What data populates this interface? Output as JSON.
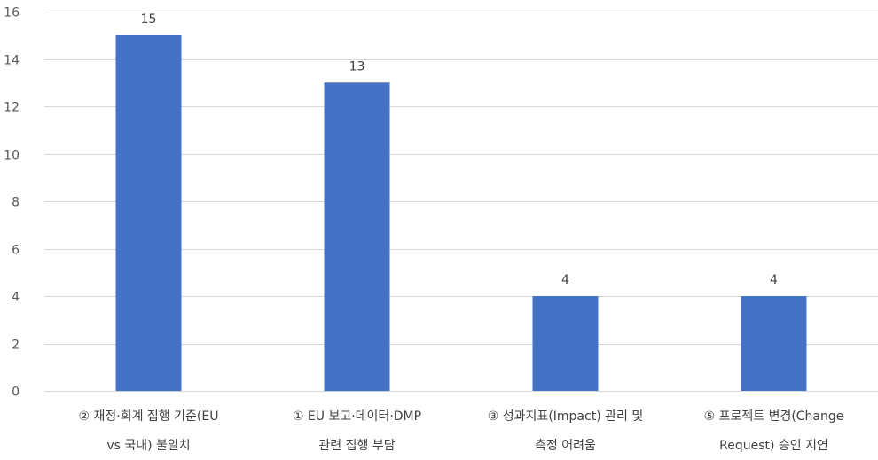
{
  "chart_data": {
    "type": "bar",
    "categories": [
      "② 재정·회계 집행 기준(EU vs 국내) 불일치",
      "① EU 보고·데이터·DMP 관련 집행 부담",
      "③ 성과지표(Impact) 관리 및 측정 어려움",
      "⑤ 프로젝트 변경(Change Request) 승인 지연"
    ],
    "category_lines": [
      [
        "② 재정·회계 집행 기준(EU",
        "vs 국내) 불일치"
      ],
      [
        "① EU 보고·데이터·DMP",
        "관련 집행 부담"
      ],
      [
        "③ 성과지표(Impact) 관리 및",
        "측정 어려움"
      ],
      [
        "⑤ 프로젝트 변경(Change",
        "Request) 승인 지연"
      ]
    ],
    "values": [
      15,
      13,
      4,
      4
    ],
    "data_labels": [
      "15",
      "13",
      "4",
      "4"
    ],
    "ylim": [
      0,
      16
    ],
    "yticks": [
      0,
      2,
      4,
      6,
      8,
      10,
      12,
      14,
      16
    ],
    "ytick_labels": [
      "0",
      "2",
      "4",
      "6",
      "8",
      "10",
      "12",
      "14",
      "16"
    ],
    "grid": true,
    "legend": "none",
    "title": "",
    "xlabel": "",
    "ylabel": "",
    "colors": {
      "bar": "#4472C4",
      "grid": "#D9D9D9",
      "tick_text": "#595959",
      "label_text": "#404040"
    }
  }
}
